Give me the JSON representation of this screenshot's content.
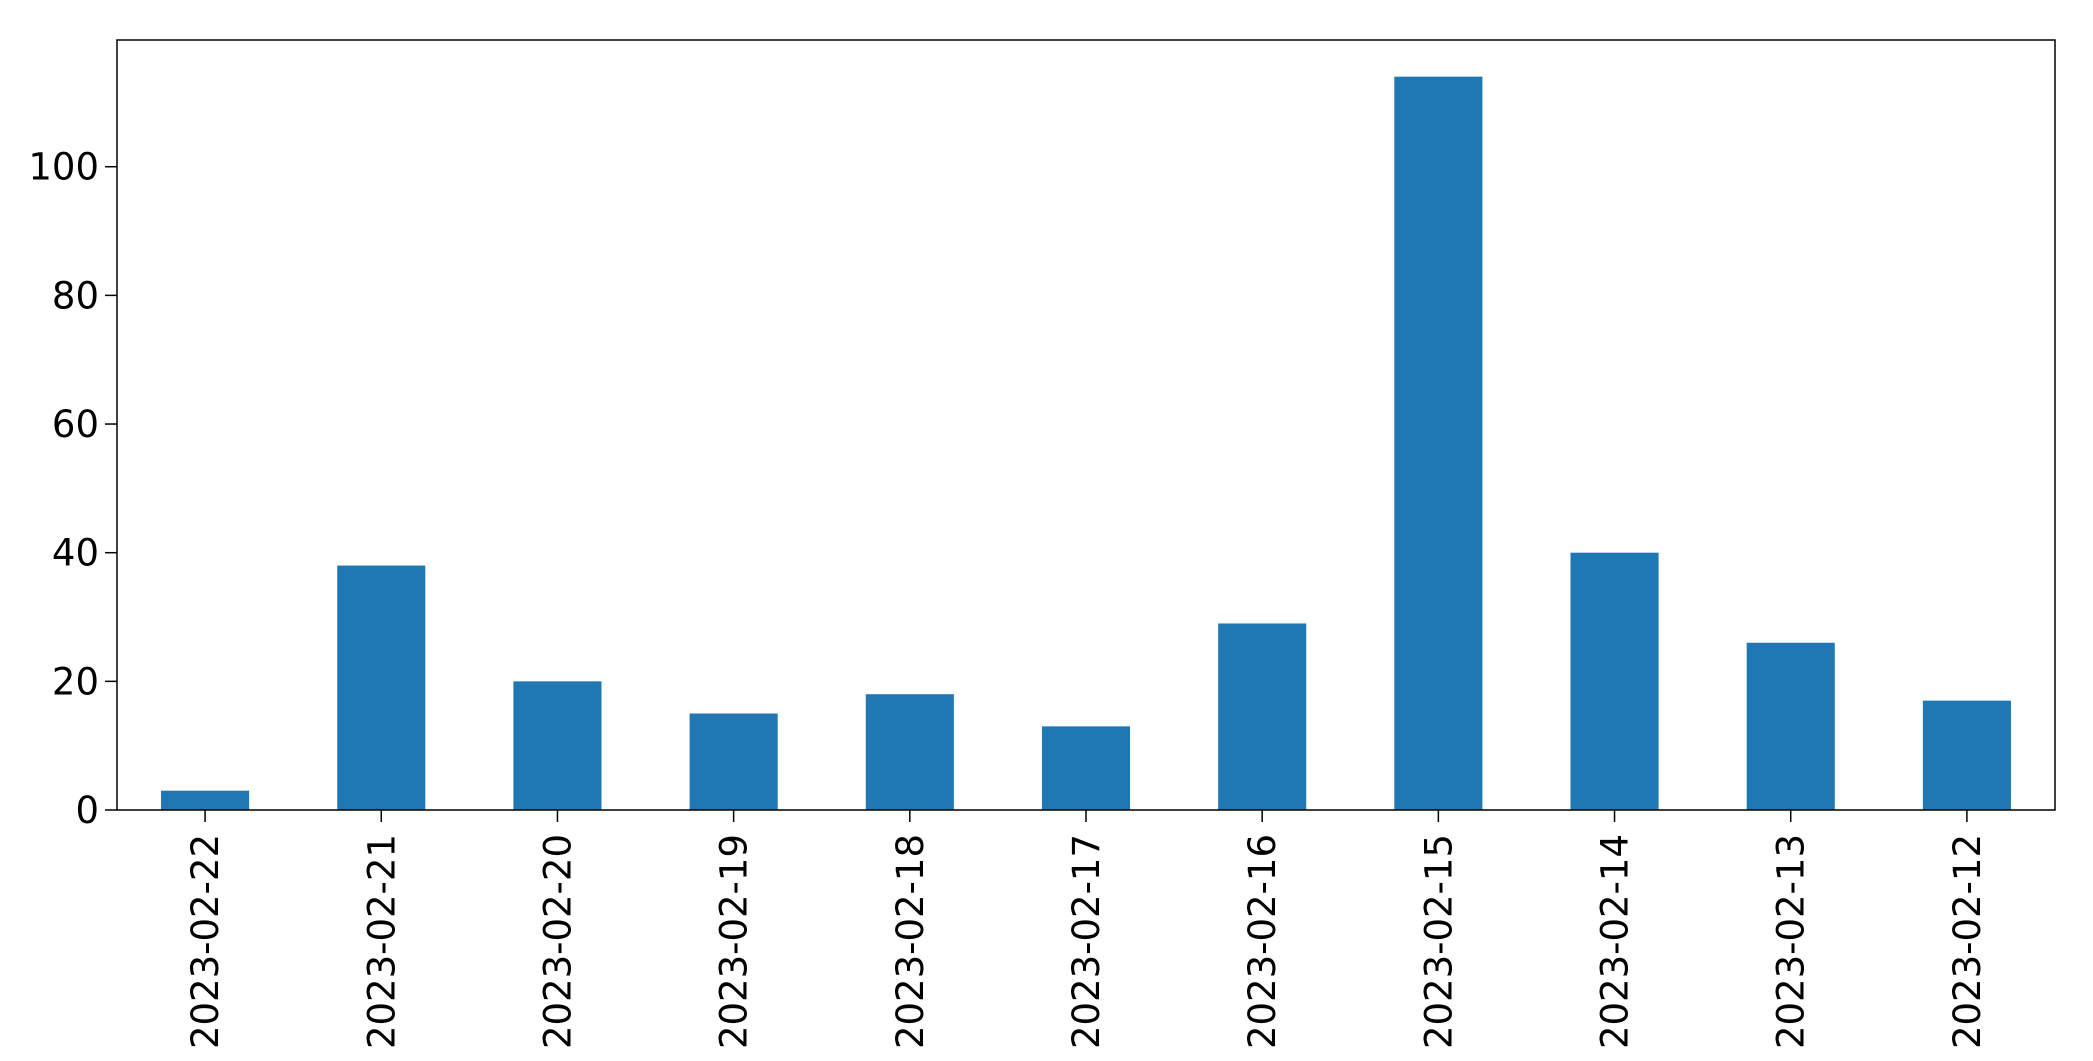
{
  "chart_data": {
    "type": "bar",
    "title": "",
    "xlabel": "",
    "ylabel": "",
    "categories": [
      "2023-02-22",
      "2023-02-21",
      "2023-02-20",
      "2023-02-19",
      "2023-02-18",
      "2023-02-17",
      "2023-02-16",
      "2023-02-15",
      "2023-02-14",
      "2023-02-13",
      "2023-02-12"
    ],
    "values": [
      3,
      38,
      20,
      15,
      18,
      13,
      29,
      114,
      40,
      26,
      17
    ],
    "ylim": [
      0,
      119.7
    ],
    "yticks": [
      0,
      20,
      40,
      60,
      80,
      100
    ],
    "grid": false,
    "legend": "none",
    "colors": {
      "bar": "#1f77b4",
      "axis": "#000000",
      "background": "#ffffff"
    }
  }
}
